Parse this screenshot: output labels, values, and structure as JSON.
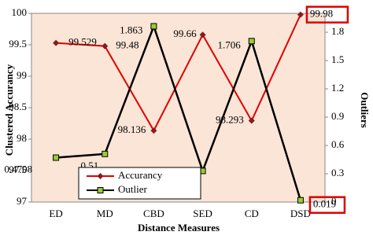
{
  "chart_data": {
    "type": "line",
    "x_label": "Distance Measures",
    "y_label": "Clustered Accurancy",
    "y2_label": "Outliers",
    "categories": [
      "ED",
      "MD",
      "CBD",
      "SED",
      "CD",
      "DSD"
    ],
    "series": [
      {
        "name": "Accurancy",
        "color": "#e00000",
        "marker_color": "#8b1a1a",
        "values": [
          99.529,
          99.48,
          98.136,
          99.66,
          98.293,
          99.98
        ]
      },
      {
        "name": "Outlier",
        "color": "#000000",
        "marker_color": "#9acd32",
        "axis": "y2",
        "values": [
          0.4708,
          0.51,
          1.863,
          0.33,
          1.706,
          0.019
        ]
      }
    ],
    "ylim": [
      97,
      100
    ],
    "yticks": [
      97,
      97.5,
      98,
      98.5,
      99,
      99.5,
      100
    ],
    "y2lim": [
      0,
      2
    ],
    "y2ticks": [
      0,
      0.3,
      0.6,
      0.9,
      1.2,
      1.5,
      1.8
    ],
    "background": "#fbe5d6"
  }
}
